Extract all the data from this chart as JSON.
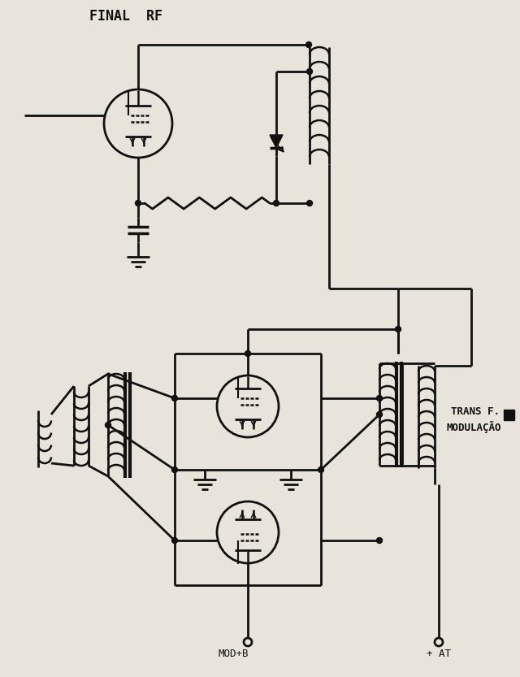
{
  "title": "FINAL  RF",
  "label_trans": "TRANS F.",
  "label_mod": "MODULAÇÃO",
  "label_mod_b": "MOD+B",
  "label_at": "+ AT",
  "bg_color": "#e8e4dc",
  "line_color": "#111111",
  "text_color": "#111111",
  "figsize": [
    6.4,
    8.33
  ],
  "dpi": 100
}
